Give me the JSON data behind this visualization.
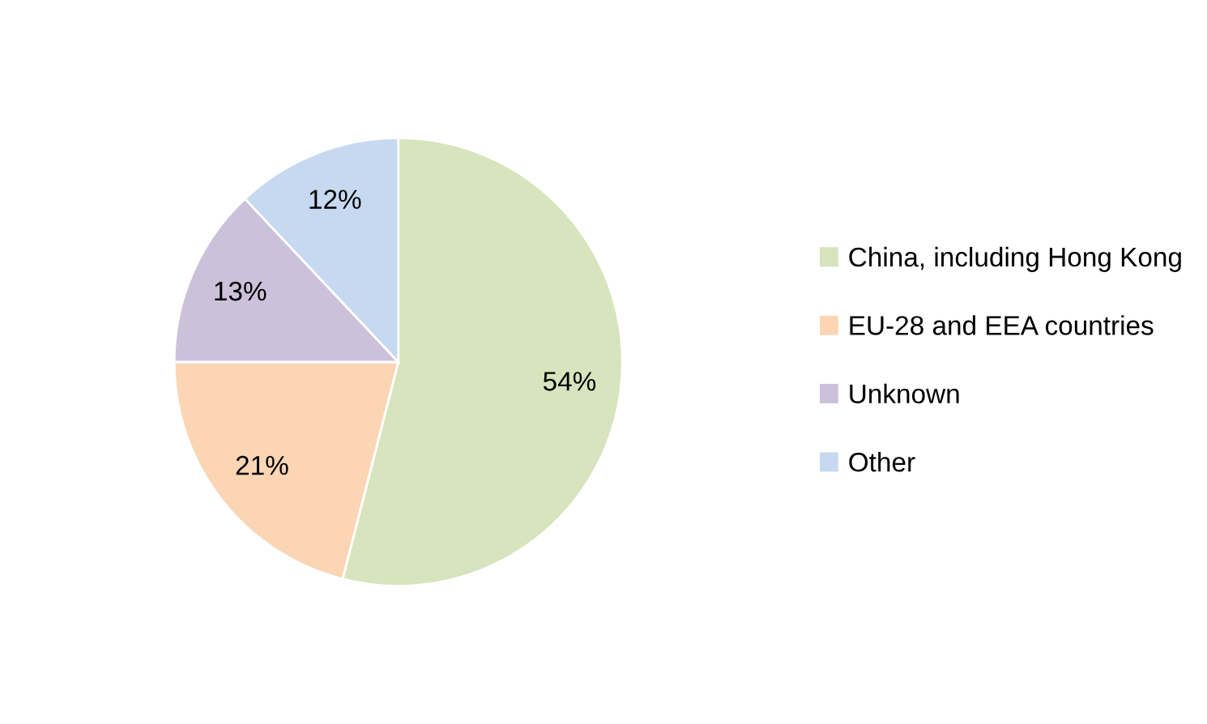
{
  "chart_data": {
    "type": "pie",
    "categories": [
      "China, including Hong Kong",
      "EU-28 and EEA countries",
      "Unknown",
      "Other"
    ],
    "values": [
      54,
      21,
      13,
      12
    ],
    "colors": [
      "#d7e4bd",
      "#fcd5b5",
      "#ccc1da",
      "#c6d9f1"
    ],
    "value_labels": [
      "54%",
      "21%",
      "13%",
      "12%"
    ],
    "legend": "right"
  }
}
